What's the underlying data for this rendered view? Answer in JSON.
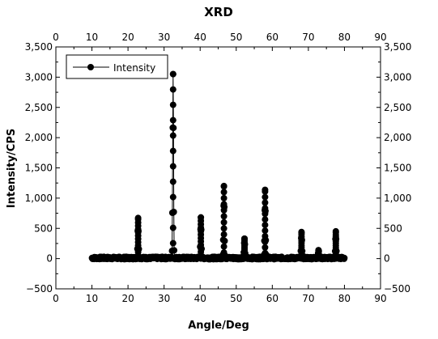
{
  "chart_data": {
    "type": "line",
    "title": "XRD",
    "xlabel": "Angle/Deg",
    "ylabel": "Intensity/CPS",
    "xlim": [
      0,
      90
    ],
    "ylim": [
      -500,
      3500
    ],
    "x_ticks": [
      "0",
      "10",
      "20",
      "30",
      "40",
      "50",
      "60",
      "70",
      "80",
      "90"
    ],
    "y_ticks": [
      "−500",
      "0",
      "500",
      "1,000",
      "1,500",
      "2,000",
      "2,500",
      "3,000",
      "3,500"
    ],
    "y_tick_values": [
      -500,
      0,
      500,
      1000,
      1500,
      2000,
      2500,
      3000,
      3500
    ],
    "x_tick_values": [
      0,
      10,
      20,
      30,
      40,
      50,
      60,
      70,
      80,
      90
    ],
    "legend_position": "top-left",
    "marker": "filled-circle",
    "line_color": "#000000",
    "baseline": 10,
    "x_range": [
      10,
      80
    ],
    "series": [
      {
        "name": "Intensity",
        "peaks": [
          {
            "x": 22.8,
            "y": 650
          },
          {
            "x": 32.5,
            "y": 3050
          },
          {
            "x": 40.2,
            "y": 680
          },
          {
            "x": 46.6,
            "y": 1200
          },
          {
            "x": 52.3,
            "y": 330
          },
          {
            "x": 58.0,
            "y": 1110
          },
          {
            "x": 68.1,
            "y": 440
          },
          {
            "x": 72.8,
            "y": 140
          },
          {
            "x": 77.6,
            "y": 430
          }
        ]
      }
    ]
  }
}
